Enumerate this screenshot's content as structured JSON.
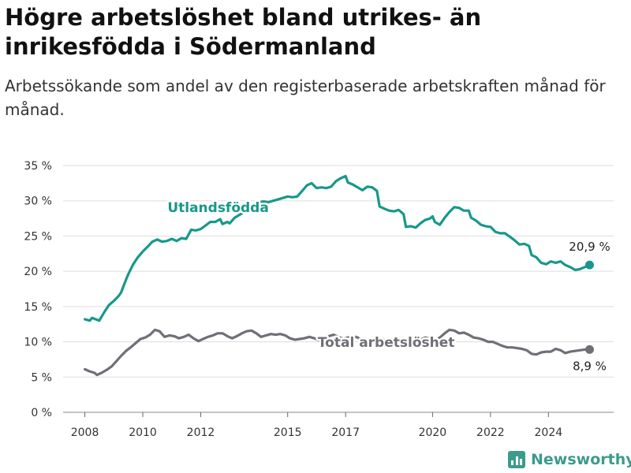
{
  "title": "Högre arbetslöshet bland utrikes- än inrikesfödda i Södermanland",
  "subtitle": "Arbetssökande som andel av den registerbaserade arbetskraften månad för månad.",
  "brand": {
    "name": "Newsworthy",
    "color": "#3b9b8c",
    "icon": "bar-chart-logo-icon"
  },
  "chart_data": {
    "type": "line",
    "x_unit": "year",
    "y_unit": "%",
    "ylim": [
      0,
      35
    ],
    "yticks": [
      0,
      5,
      10,
      15,
      20,
      25,
      30,
      35
    ],
    "ytick_labels": [
      "0 %",
      "5 %",
      "10 %",
      "15 %",
      "20 %",
      "25 %",
      "30 %",
      "35 %"
    ],
    "xticks": [
      2008,
      2010,
      2012,
      2015,
      2017,
      2020,
      2022,
      2024
    ],
    "grid": true,
    "legend": "none",
    "series": [
      {
        "name": "Utlandsfödda",
        "color": "#17988a",
        "end_label": "20,9 %",
        "points": [
          [
            2008.0,
            13.2
          ],
          [
            2008.17,
            13.0
          ],
          [
            2008.25,
            13.4
          ],
          [
            2008.5,
            13.0
          ],
          [
            2008.67,
            14.2
          ],
          [
            2008.83,
            15.2
          ],
          [
            2009.0,
            15.8
          ],
          [
            2009.17,
            16.5
          ],
          [
            2009.25,
            17.0
          ],
          [
            2009.42,
            18.8
          ],
          [
            2009.5,
            19.6
          ],
          [
            2009.67,
            21.0
          ],
          [
            2009.83,
            22.0
          ],
          [
            2010.0,
            22.8
          ],
          [
            2010.17,
            23.5
          ],
          [
            2010.33,
            24.2
          ],
          [
            2010.5,
            24.5
          ],
          [
            2010.67,
            24.2
          ],
          [
            2010.83,
            24.3
          ],
          [
            2011.0,
            24.6
          ],
          [
            2011.17,
            24.3
          ],
          [
            2011.33,
            24.7
          ],
          [
            2011.5,
            24.6
          ],
          [
            2011.67,
            25.9
          ],
          [
            2011.83,
            25.8
          ],
          [
            2012.0,
            26.0
          ],
          [
            2012.17,
            26.5
          ],
          [
            2012.33,
            27.0
          ],
          [
            2012.5,
            27.0
          ],
          [
            2012.67,
            27.4
          ],
          [
            2012.75,
            26.7
          ],
          [
            2012.92,
            27.0
          ],
          [
            2013.0,
            26.8
          ],
          [
            2013.17,
            27.6
          ],
          [
            2013.33,
            28.0
          ],
          [
            2013.5,
            28.4
          ],
          [
            2013.67,
            29.0
          ],
          [
            2013.83,
            29.5
          ],
          [
            2014.0,
            29.8
          ],
          [
            2014.17,
            29.9
          ],
          [
            2014.33,
            29.8
          ],
          [
            2014.5,
            30.0
          ],
          [
            2014.67,
            30.2
          ],
          [
            2015.0,
            30.6
          ],
          [
            2015.17,
            30.5
          ],
          [
            2015.33,
            30.6
          ],
          [
            2015.5,
            31.4
          ],
          [
            2015.67,
            32.2
          ],
          [
            2015.83,
            32.5
          ],
          [
            2016.0,
            31.8
          ],
          [
            2016.17,
            31.9
          ],
          [
            2016.33,
            31.8
          ],
          [
            2016.5,
            32.0
          ],
          [
            2016.67,
            32.8
          ],
          [
            2016.83,
            33.2
          ],
          [
            2017.0,
            33.5
          ],
          [
            2017.08,
            32.6
          ],
          [
            2017.25,
            32.3
          ],
          [
            2017.42,
            31.9
          ],
          [
            2017.58,
            31.5
          ],
          [
            2017.75,
            32.0
          ],
          [
            2017.92,
            31.9
          ],
          [
            2018.08,
            31.4
          ],
          [
            2018.17,
            29.2
          ],
          [
            2018.33,
            28.9
          ],
          [
            2018.5,
            28.6
          ],
          [
            2018.67,
            28.5
          ],
          [
            2018.83,
            28.7
          ],
          [
            2019.0,
            28.1
          ],
          [
            2019.08,
            26.3
          ],
          [
            2019.25,
            26.4
          ],
          [
            2019.42,
            26.2
          ],
          [
            2019.58,
            26.8
          ],
          [
            2019.75,
            27.3
          ],
          [
            2019.92,
            27.5
          ],
          [
            2020.0,
            27.8
          ],
          [
            2020.08,
            27.0
          ],
          [
            2020.25,
            26.6
          ],
          [
            2020.42,
            27.6
          ],
          [
            2020.58,
            28.4
          ],
          [
            2020.75,
            29.1
          ],
          [
            2020.92,
            29.0
          ],
          [
            2021.08,
            28.6
          ],
          [
            2021.25,
            28.6
          ],
          [
            2021.33,
            27.6
          ],
          [
            2021.5,
            27.2
          ],
          [
            2021.67,
            26.6
          ],
          [
            2021.83,
            26.4
          ],
          [
            2022.0,
            26.3
          ],
          [
            2022.17,
            25.6
          ],
          [
            2022.33,
            25.4
          ],
          [
            2022.5,
            25.4
          ],
          [
            2022.67,
            24.9
          ],
          [
            2022.83,
            24.4
          ],
          [
            2023.0,
            23.8
          ],
          [
            2023.17,
            23.9
          ],
          [
            2023.33,
            23.6
          ],
          [
            2023.42,
            22.3
          ],
          [
            2023.58,
            22.0
          ],
          [
            2023.75,
            21.2
          ],
          [
            2023.92,
            21.0
          ],
          [
            2024.08,
            21.4
          ],
          [
            2024.25,
            21.2
          ],
          [
            2024.42,
            21.4
          ],
          [
            2024.58,
            20.9
          ],
          [
            2024.75,
            20.6
          ],
          [
            2024.92,
            20.2
          ],
          [
            2025.08,
            20.3
          ],
          [
            2025.25,
            20.6
          ],
          [
            2025.42,
            20.9
          ]
        ]
      },
      {
        "name": "Total arbetslöshet",
        "color": "#6f6f77",
        "end_label": "8,9 %",
        "points": [
          [
            2008.0,
            6.1
          ],
          [
            2008.17,
            5.8
          ],
          [
            2008.33,
            5.6
          ],
          [
            2008.42,
            5.3
          ],
          [
            2008.58,
            5.6
          ],
          [
            2008.75,
            6.0
          ],
          [
            2008.92,
            6.5
          ],
          [
            2009.08,
            7.2
          ],
          [
            2009.25,
            8.0
          ],
          [
            2009.42,
            8.7
          ],
          [
            2009.58,
            9.2
          ],
          [
            2009.75,
            9.8
          ],
          [
            2009.92,
            10.4
          ],
          [
            2010.08,
            10.6
          ],
          [
            2010.25,
            11.0
          ],
          [
            2010.42,
            11.7
          ],
          [
            2010.58,
            11.5
          ],
          [
            2010.75,
            10.7
          ],
          [
            2010.92,
            10.9
          ],
          [
            2011.08,
            10.8
          ],
          [
            2011.25,
            10.5
          ],
          [
            2011.42,
            10.7
          ],
          [
            2011.58,
            11.0
          ],
          [
            2011.75,
            10.5
          ],
          [
            2011.92,
            10.1
          ],
          [
            2012.08,
            10.4
          ],
          [
            2012.25,
            10.7
          ],
          [
            2012.42,
            10.9
          ],
          [
            2012.58,
            11.2
          ],
          [
            2012.75,
            11.2
          ],
          [
            2012.92,
            10.8
          ],
          [
            2013.08,
            10.5
          ],
          [
            2013.25,
            10.8
          ],
          [
            2013.42,
            11.2
          ],
          [
            2013.58,
            11.5
          ],
          [
            2013.75,
            11.6
          ],
          [
            2013.92,
            11.2
          ],
          [
            2014.08,
            10.7
          ],
          [
            2014.25,
            10.9
          ],
          [
            2014.42,
            11.1
          ],
          [
            2014.58,
            11.0
          ],
          [
            2014.75,
            11.1
          ],
          [
            2014.92,
            10.9
          ],
          [
            2015.08,
            10.5
          ],
          [
            2015.25,
            10.3
          ],
          [
            2015.42,
            10.4
          ],
          [
            2015.58,
            10.5
          ],
          [
            2015.75,
            10.7
          ],
          [
            2015.92,
            10.5
          ],
          [
            2016.08,
            10.2
          ],
          [
            2016.25,
            10.5
          ],
          [
            2016.42,
            10.8
          ],
          [
            2016.58,
            11.0
          ],
          [
            2016.75,
            10.7
          ],
          [
            2016.92,
            10.4
          ],
          [
            2017.08,
            10.6
          ],
          [
            2017.25,
            10.8
          ],
          [
            2017.42,
            10.6
          ],
          [
            2017.58,
            10.2
          ],
          [
            2017.75,
            10.1
          ],
          [
            2017.92,
            10.3
          ],
          [
            2018.08,
            10.6
          ],
          [
            2018.25,
            10.4
          ],
          [
            2018.42,
            10.1
          ],
          [
            2018.58,
            10.2
          ],
          [
            2018.75,
            10.4
          ],
          [
            2018.92,
            10.2
          ],
          [
            2019.08,
            10.0
          ],
          [
            2019.25,
            10.1
          ],
          [
            2019.42,
            10.0
          ],
          [
            2019.58,
            10.3
          ],
          [
            2019.75,
            10.6
          ],
          [
            2019.92,
            10.4
          ],
          [
            2020.08,
            10.2
          ],
          [
            2020.25,
            10.6
          ],
          [
            2020.42,
            11.2
          ],
          [
            2020.58,
            11.7
          ],
          [
            2020.75,
            11.6
          ],
          [
            2020.92,
            11.2
          ],
          [
            2021.08,
            11.3
          ],
          [
            2021.25,
            11.0
          ],
          [
            2021.42,
            10.6
          ],
          [
            2021.58,
            10.5
          ],
          [
            2021.75,
            10.3
          ],
          [
            2021.92,
            10.0
          ],
          [
            2022.08,
            10.0
          ],
          [
            2022.25,
            9.7
          ],
          [
            2022.42,
            9.4
          ],
          [
            2022.58,
            9.2
          ],
          [
            2022.75,
            9.2
          ],
          [
            2022.92,
            9.1
          ],
          [
            2023.08,
            9.0
          ],
          [
            2023.25,
            8.8
          ],
          [
            2023.42,
            8.3
          ],
          [
            2023.58,
            8.2
          ],
          [
            2023.75,
            8.5
          ],
          [
            2023.92,
            8.6
          ],
          [
            2024.08,
            8.6
          ],
          [
            2024.25,
            9.0
          ],
          [
            2024.42,
            8.8
          ],
          [
            2024.58,
            8.4
          ],
          [
            2024.75,
            8.6
          ],
          [
            2024.92,
            8.7
          ],
          [
            2025.08,
            8.8
          ],
          [
            2025.25,
            8.9
          ],
          [
            2025.42,
            8.9
          ]
        ]
      }
    ]
  }
}
